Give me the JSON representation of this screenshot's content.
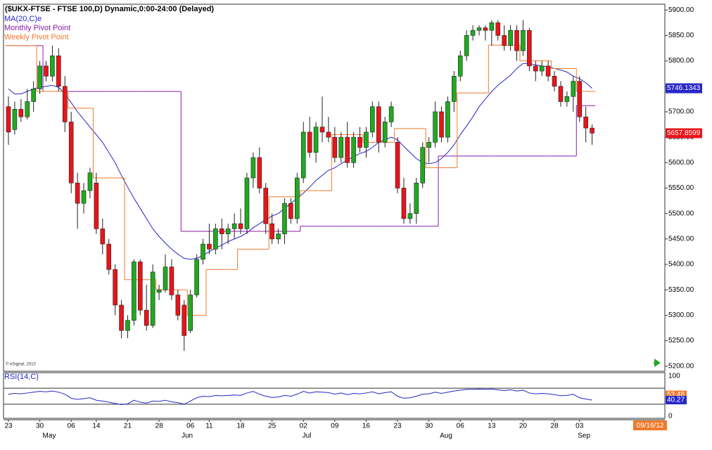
{
  "chart_data": {
    "type": "candlestick",
    "title": "($UKX-FTSE - FTSE 100,D) Dynamic,0:00-24:00 (Delayed)",
    "copyright": "© eSignal, 2010",
    "date_stamp": "09/16/12",
    "months": [
      "May",
      "Jun",
      "Jul",
      "Aug",
      "Sep"
    ],
    "categories": [
      "23",
      null,
      null,
      null,
      null,
      "30",
      null,
      null,
      null,
      null,
      "06",
      null,
      null,
      null,
      "14",
      null,
      null,
      null,
      null,
      "21",
      null,
      null,
      null,
      null,
      "28",
      null,
      null,
      null,
      null,
      "06",
      null,
      null,
      "11",
      null,
      null,
      null,
      null,
      "18",
      null,
      null,
      null,
      null,
      "25",
      null,
      null,
      null,
      null,
      "02",
      null,
      null,
      null,
      null,
      "09",
      null,
      null,
      null,
      null,
      "16",
      null,
      null,
      null,
      null,
      "23",
      null,
      null,
      null,
      null,
      "30",
      null,
      null,
      null,
      null,
      "06",
      null,
      null,
      null,
      null,
      "13",
      null,
      null,
      null,
      null,
      "20",
      null,
      null,
      null,
      null,
      "28",
      null,
      null,
      null,
      "03",
      null,
      null
    ],
    "open": [
      5710,
      5665,
      5705,
      5690,
      5720,
      5745,
      5790,
      5770,
      5810,
      5750,
      5680,
      5560,
      5520,
      5545,
      5560,
      5470,
      5440,
      5390,
      5320,
      5270,
      5290,
      5405,
      5310,
      5280,
      5345,
      5350,
      5395,
      5340,
      5320,
      5270,
      5340,
      5410,
      5440,
      5430,
      5470,
      5460,
      5470,
      5480,
      5470,
      5570,
      5610,
      5550,
      5480,
      5450,
      5460,
      5520,
      5490,
      5570,
      5660,
      5620,
      5670,
      5660,
      5650,
      5610,
      5650,
      5600,
      5650,
      5630,
      5660,
      5710,
      5640,
      5680,
      5640,
      5550,
      5490,
      5500,
      5560,
      5630,
      5640,
      5700,
      5650,
      5720,
      5770,
      5810,
      5850,
      5860,
      5865,
      5860,
      5875,
      5850,
      5830,
      5860,
      5820,
      5860,
      5790,
      5780,
      5790,
      5770,
      5750,
      5720,
      5730,
      5760,
      5690,
      5668
    ],
    "high": [
      5730,
      5720,
      5725,
      5745,
      5760,
      5800,
      5800,
      5830,
      5825,
      5770,
      5700,
      5580,
      5560,
      5590,
      5580,
      5490,
      5450,
      5400,
      5330,
      5300,
      5410,
      5410,
      5360,
      5400,
      5360,
      5420,
      5410,
      5350,
      5330,
      5350,
      5420,
      5450,
      5480,
      5480,
      5490,
      5480,
      5500,
      5510,
      5580,
      5620,
      5630,
      5560,
      5500,
      5470,
      5530,
      5530,
      5580,
      5680,
      5690,
      5680,
      5730,
      5690,
      5670,
      5660,
      5680,
      5660,
      5670,
      5670,
      5720,
      5720,
      5690,
      5720,
      5650,
      5570,
      5520,
      5570,
      5640,
      5650,
      5720,
      5710,
      5730,
      5780,
      5820,
      5860,
      5870,
      5870,
      5870,
      5880,
      5880,
      5870,
      5870,
      5870,
      5880,
      5865,
      5800,
      5800,
      5800,
      5780,
      5760,
      5740,
      5770,
      5770,
      5710,
      5675
    ],
    "low": [
      5635,
      5655,
      5680,
      5685,
      5700,
      5735,
      5760,
      5760,
      5740,
      5660,
      5540,
      5470,
      5500,
      5530,
      5460,
      5420,
      5380,
      5300,
      5255,
      5255,
      5280,
      5300,
      5270,
      5275,
      5330,
      5345,
      5330,
      5290,
      5230,
      5265,
      5335,
      5400,
      5420,
      5420,
      5430,
      5440,
      5450,
      5460,
      5460,
      5550,
      5540,
      5460,
      5440,
      5440,
      5440,
      5480,
      5480,
      5560,
      5610,
      5600,
      5640,
      5640,
      5600,
      5600,
      5590,
      5590,
      5620,
      5610,
      5650,
      5620,
      5630,
      5670,
      5540,
      5480,
      5480,
      5480,
      5550,
      5600,
      5630,
      5640,
      5640,
      5700,
      5760,
      5800,
      5840,
      5850,
      5840,
      5830,
      5840,
      5820,
      5820,
      5800,
      5810,
      5780,
      5760,
      5770,
      5760,
      5740,
      5710,
      5710,
      5700,
      5680,
      5640,
      5635
    ],
    "close": [
      5660,
      5705,
      5690,
      5720,
      5745,
      5790,
      5770,
      5810,
      5750,
      5680,
      5560,
      5520,
      5545,
      5580,
      5470,
      5440,
      5390,
      5320,
      5270,
      5290,
      5405,
      5310,
      5280,
      5385,
      5350,
      5395,
      5340,
      5300,
      5260,
      5340,
      5410,
      5440,
      5430,
      5470,
      5460,
      5470,
      5480,
      5470,
      5570,
      5610,
      5550,
      5480,
      5450,
      5460,
      5520,
      5490,
      5570,
      5660,
      5620,
      5670,
      5660,
      5650,
      5610,
      5650,
      5600,
      5650,
      5630,
      5660,
      5710,
      5640,
      5680,
      5710,
      5550,
      5490,
      5500,
      5560,
      5630,
      5640,
      5700,
      5650,
      5720,
      5770,
      5810,
      5850,
      5860,
      5865,
      5860,
      5875,
      5850,
      5830,
      5860,
      5820,
      5860,
      5790,
      5780,
      5790,
      5770,
      5750,
      5720,
      5730,
      5760,
      5690,
      5668,
      5658
    ],
    "up_color": "#1faa1f",
    "down_color": "#e8141a",
    "overlays": [
      {
        "name": "MA(20,C)e",
        "color": "#2626c8",
        "style": "line",
        "values": [
          5745,
          5735,
          5735,
          5740,
          5745,
          5748,
          5750,
          5752,
          5748,
          5735,
          5718,
          5700,
          5685,
          5670,
          5655,
          5640,
          5620,
          5600,
          5575,
          5552,
          5530,
          5510,
          5490,
          5470,
          5455,
          5442,
          5430,
          5420,
          5412,
          5410,
          5412,
          5418,
          5425,
          5432,
          5438,
          5445,
          5450,
          5455,
          5462,
          5472,
          5480,
          5488,
          5495,
          5500,
          5510,
          5520,
          5530,
          5540,
          5552,
          5565,
          5575,
          5585,
          5590,
          5598,
          5605,
          5612,
          5618,
          5622,
          5630,
          5640,
          5645,
          5650,
          5645,
          5632,
          5620,
          5608,
          5600,
          5598,
          5600,
          5608,
          5620,
          5635,
          5655,
          5672,
          5690,
          5710,
          5725,
          5740,
          5752,
          5762,
          5772,
          5785,
          5795,
          5795,
          5792,
          5790,
          5788,
          5785,
          5782,
          5778,
          5770,
          5765,
          5757,
          5746
        ]
      },
      {
        "name": "Monthly Pivot Point",
        "color": "#8a1aa8",
        "style": "step",
        "values": [
          5830,
          5830,
          5830,
          5830,
          5830,
          5830,
          5740,
          5740,
          5740,
          5740,
          5740,
          5740,
          5740,
          5740,
          5740,
          5740,
          5740,
          5740,
          5740,
          5740,
          5740,
          5740,
          5740,
          5740,
          5740,
          5740,
          5740,
          5740,
          5465,
          5465,
          5465,
          5465,
          5465,
          5465,
          5465,
          5465,
          5465,
          5465,
          5465,
          5465,
          5465,
          5465,
          5465,
          5465,
          5465,
          5465,
          5465,
          5475,
          5475,
          5475,
          5475,
          5475,
          5475,
          5475,
          5475,
          5475,
          5475,
          5475,
          5475,
          5475,
          5475,
          5475,
          5475,
          5475,
          5475,
          5475,
          5475,
          5475,
          5475,
          5613,
          5613,
          5613,
          5613,
          5613,
          5613,
          5613,
          5613,
          5613,
          5613,
          5613,
          5613,
          5613,
          5613,
          5613,
          5613,
          5613,
          5613,
          5613,
          5613,
          5613,
          5613,
          5712,
          5712,
          5712
        ]
      },
      {
        "name": "Weekly Pivot Point",
        "color": "#f07a2a",
        "style": "step",
        "values": [
          5830,
          5830,
          5830,
          5830,
          5830,
          5740,
          5740,
          5740,
          5740,
          5740,
          5707,
          5707,
          5707,
          5707,
          5570,
          5570,
          5570,
          5570,
          5570,
          5370,
          5370,
          5370,
          5370,
          5370,
          5350,
          5350,
          5350,
          5350,
          5350,
          5300,
          5300,
          5300,
          5390,
          5390,
          5390,
          5390,
          5390,
          5430,
          5430,
          5430,
          5430,
          5430,
          5533,
          5533,
          5533,
          5533,
          5533,
          5545,
          5545,
          5545,
          5545,
          5545,
          5655,
          5655,
          5655,
          5655,
          5655,
          5640,
          5640,
          5640,
          5640,
          5640,
          5667,
          5667,
          5667,
          5667,
          5667,
          5590,
          5590,
          5590,
          5590,
          5590,
          5737,
          5737,
          5737,
          5737,
          5737,
          5831,
          5831,
          5831,
          5831,
          5831,
          5800,
          5800,
          5800,
          5800,
          5800,
          5785,
          5785,
          5785,
          5785,
          5740,
          5740,
          5740
        ]
      }
    ],
    "price_markers": [
      {
        "value": 5746.1343,
        "label": "5746.1343",
        "color": "#2626c8"
      },
      {
        "value": 5657.8599,
        "label": "5657.8599",
        "color": "#e8141a"
      }
    ],
    "ylim": [
      5190,
      5910
    ],
    "yticks": [
      {
        "value": 5200,
        "label": "5200.00"
      },
      {
        "value": 5250,
        "label": "5250.00"
      },
      {
        "value": 5300,
        "label": "5300.00"
      },
      {
        "value": 5350,
        "label": "5350.00"
      },
      {
        "value": 5400,
        "label": "5400.00"
      },
      {
        "value": 5450,
        "label": "5450.00"
      },
      {
        "value": 5500,
        "label": "5500.00"
      },
      {
        "value": 5550,
        "label": "5550.00"
      },
      {
        "value": 5600,
        "label": "5600.00"
      },
      {
        "value": 5650,
        "label": "5650.00"
      },
      {
        "value": 5700,
        "label": "5700.00"
      },
      {
        "value": 5750,
        "label": "5750.00"
      },
      {
        "value": 5800,
        "label": "5800.00"
      },
      {
        "value": 5850,
        "label": "5850.00"
      },
      {
        "value": 5900,
        "label": "5900.00"
      }
    ],
    "rsi": {
      "name": "RSI(14,C)",
      "color": "#2626c8",
      "ylim": [
        0,
        100
      ],
      "yticks": [
        0,
        100
      ],
      "levels": [
        70,
        30
      ],
      "values": [
        55,
        57,
        56,
        58,
        60,
        62,
        61,
        63,
        60,
        55,
        45,
        42,
        44,
        46,
        40,
        38,
        35,
        32,
        29,
        31,
        40,
        35,
        33,
        38,
        37,
        40,
        36,
        34,
        30,
        38,
        46,
        50,
        49,
        52,
        51,
        52,
        53,
        52,
        58,
        62,
        55,
        50,
        47,
        48,
        52,
        50,
        55,
        62,
        58,
        61,
        60,
        59,
        55,
        58,
        54,
        57,
        56,
        58,
        61,
        56,
        59,
        61,
        50,
        45,
        46,
        50,
        55,
        56,
        60,
        57,
        60,
        63,
        65,
        67,
        67,
        68,
        67,
        68,
        66,
        64,
        66,
        63,
        65,
        58,
        56,
        57,
        56,
        54,
        51,
        52,
        55,
        46,
        43,
        40.27
      ],
      "markers": [
        {
          "value": 53.48,
          "label": "53.48",
          "color": "#f07a2a"
        },
        {
          "value": 40.27,
          "label": "40.27",
          "color": "#2626c8"
        }
      ]
    }
  }
}
